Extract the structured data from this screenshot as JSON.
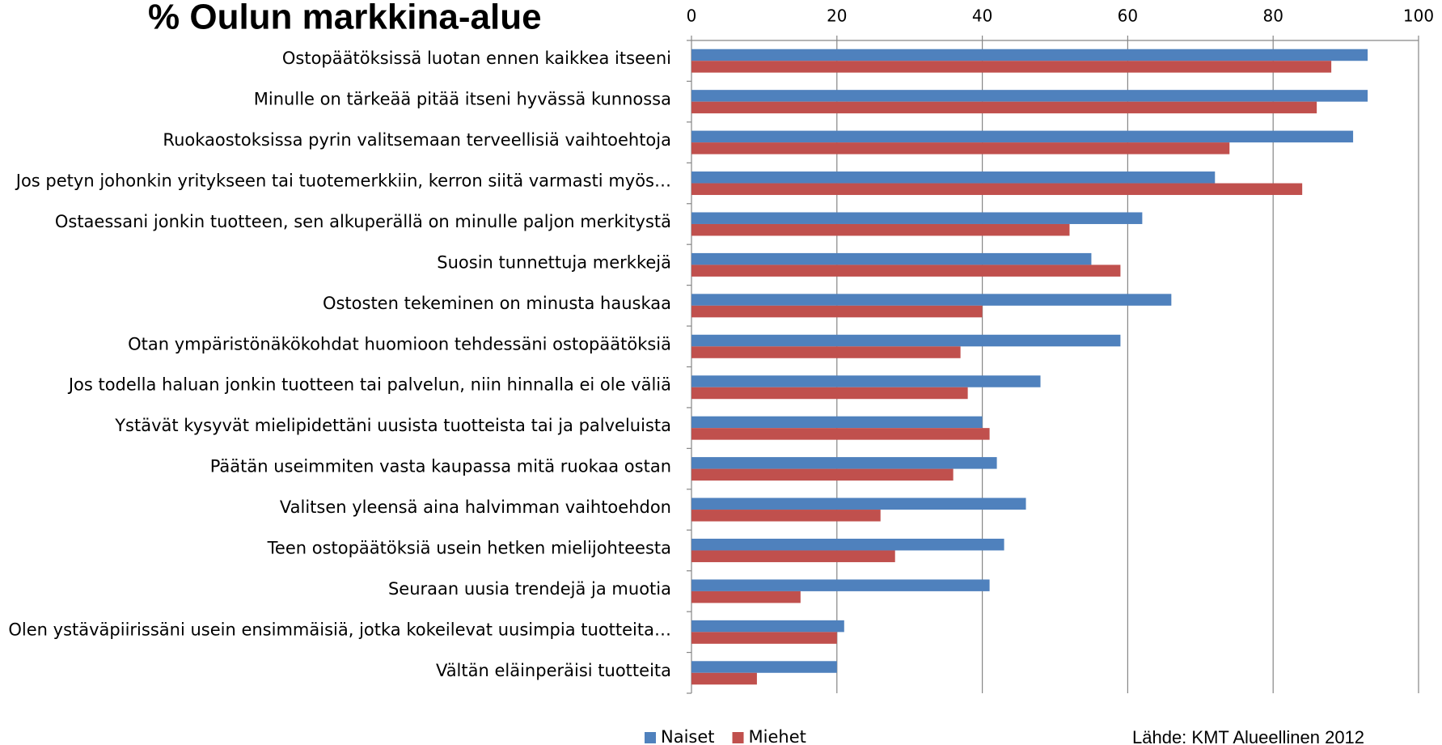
{
  "chart_data": {
    "type": "barh",
    "title": "% Oulun markkina-alue",
    "source": "Lähde: KMT Alueellinen 2012",
    "categories": [
      "Ostopäätöksissä luotan ennen kaikkea itseeni",
      "Minulle on tärkeää pitää itseni hyvässä kunnossa",
      "Ruokaostoksissa pyrin valitsemaan terveellisiä vaihtoehtoja",
      "Jos petyn johonkin yritykseen tai tuotemerkkiin, kerron siitä varmasti myös…",
      "Ostaessani jonkin tuotteen, sen alkuperällä on minulle paljon merkitystä",
      "Suosin tunnettuja merkkejä",
      "Ostosten tekeminen on minusta hauskaa",
      "Otan ympäristönäkökohdat huomioon tehdessäni ostopäätöksiä",
      "Jos todella haluan jonkin tuotteen tai palvelun, niin hinnalla ei ole väliä",
      "Ystävät kysyvät mielipidettäni uusista tuotteista tai ja palveluista",
      "Päätän useimmiten vasta kaupassa mitä ruokaa ostan",
      "Valitsen yleensä aina halvimman vaihtoehdon",
      "Teen ostopäätöksiä usein hetken mielijohteesta",
      "Seuraan uusia trendejä ja muotia",
      "Olen ystäväpiirissäni usein ensimmäisiä, jotka kokeilevat uusimpia tuotteita…",
      "Vältän eläinperäisi tuotteita"
    ],
    "series": [
      {
        "name": "Naiset",
        "color": "#4f81bd",
        "values": [
          93,
          93,
          91,
          72,
          62,
          55,
          66,
          59,
          48,
          40,
          42,
          46,
          43,
          41,
          21,
          20
        ]
      },
      {
        "name": "Miehet",
        "color": "#c0504d",
        "values": [
          88,
          86,
          74,
          84,
          52,
          59,
          40,
          37,
          38,
          41,
          36,
          26,
          28,
          15,
          20,
          9
        ]
      }
    ],
    "xlim": [
      0,
      100
    ],
    "xticks": [
      0,
      20,
      40,
      60,
      80,
      100
    ],
    "grid": true,
    "legend": "bottom"
  }
}
